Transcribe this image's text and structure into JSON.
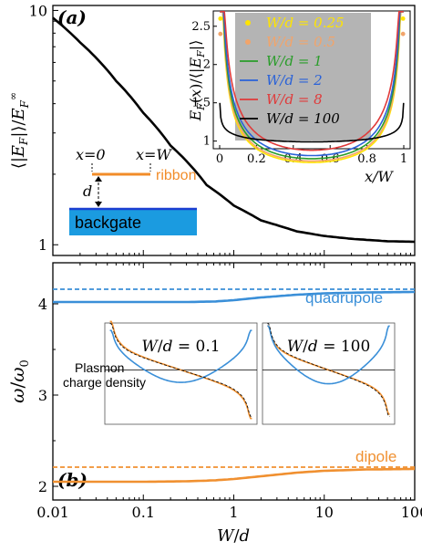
{
  "chart_data": [
    {
      "panel": "(a)",
      "type": "line",
      "x_scale": "log",
      "y_scale": "log",
      "xlim": [
        0.01,
        100
      ],
      "ylim": [
        0.9,
        10.5
      ],
      "yticks": [
        "1",
        "10"
      ],
      "ylabel": "⟨|E_F|⟩/E_F^∞",
      "series": [
        {
          "color": "#000000",
          "x": [
            0.01,
            0.02,
            0.05,
            0.1,
            0.2,
            0.5,
            1,
            2,
            5,
            10,
            20,
            50,
            100
          ],
          "y": [
            9.3,
            7.3,
            5.0,
            3.65,
            2.65,
            1.8,
            1.47,
            1.27,
            1.14,
            1.09,
            1.06,
            1.035,
            1.03
          ]
        }
      ],
      "schematic": {
        "x0_label": "x=0",
        "xW_label": "x=W",
        "ribbon_label": "ribbon",
        "d_label": "d",
        "backgate_label": "backgate",
        "ribbon_color": "#f28c28",
        "backgate_color": "#1b9be0",
        "backgate_edge_color": "#1a3fd1"
      },
      "inset": {
        "type": "line",
        "xlabel": "x/W",
        "ylabel": "E_F(x)/⟨|E_F|⟩",
        "xlim": [
          0,
          1
        ],
        "ylim": [
          0.9,
          2.7
        ],
        "xticks": [
          "0",
          "0.2",
          "0.4",
          "0.6",
          "0.8",
          "1"
        ],
        "yticks": [
          "1",
          "1.5",
          "2",
          "2.5"
        ],
        "legend_position": "top-center",
        "background": "#b4b4b4",
        "series": [
          {
            "name": "W/d = 0.25",
            "color": "#ffe400",
            "marker": "circle",
            "min": 0.72
          },
          {
            "name": "W/d = 0.5",
            "color": "#f2a46a",
            "marker": "circle",
            "min": 0.74
          },
          {
            "name": "W/d = 1",
            "color": "#2a9d2a",
            "min": 0.77
          },
          {
            "name": "W/d = 2",
            "color": "#2a62d8",
            "min": 0.81
          },
          {
            "name": "W/d = 8",
            "color": "#e03a3a",
            "min": 0.88
          },
          {
            "name": "W/d = 100",
            "color": "#000000",
            "min": 0.99
          }
        ]
      }
    },
    {
      "panel": "(b)",
      "type": "line",
      "x_scale": "log",
      "xlim": [
        0.01,
        100
      ],
      "xticks": [
        "0.01",
        "0.1",
        "1",
        "10",
        "100"
      ],
      "ylim": [
        1.85,
        4.45
      ],
      "yticks": [
        "2",
        "3",
        "4"
      ],
      "xlabel": "W/d",
      "ylabel": "ω/ω₀",
      "series": [
        {
          "name": "quadrupole",
          "color": "#3a8fd8",
          "x": [
            0.01,
            0.1,
            0.3,
            0.6,
            1,
            2,
            5,
            10,
            30,
            100
          ],
          "y": [
            4.02,
            4.02,
            4.02,
            4.025,
            4.04,
            4.07,
            4.1,
            4.115,
            4.125,
            4.13
          ],
          "asymptote": 4.16
        },
        {
          "name": "dipole",
          "color": "#f09030",
          "x": [
            0.01,
            0.1,
            0.3,
            0.6,
            1,
            2,
            5,
            10,
            30,
            100
          ],
          "y": [
            2.05,
            2.05,
            2.055,
            2.065,
            2.08,
            2.11,
            2.15,
            2.17,
            2.185,
            2.19
          ],
          "asymptote": 2.21
        }
      ],
      "insets": [
        {
          "title": "W/d = 0.1",
          "ylabel": "Plasmon charge density"
        },
        {
          "title": "W/d = 100"
        }
      ]
    }
  ]
}
